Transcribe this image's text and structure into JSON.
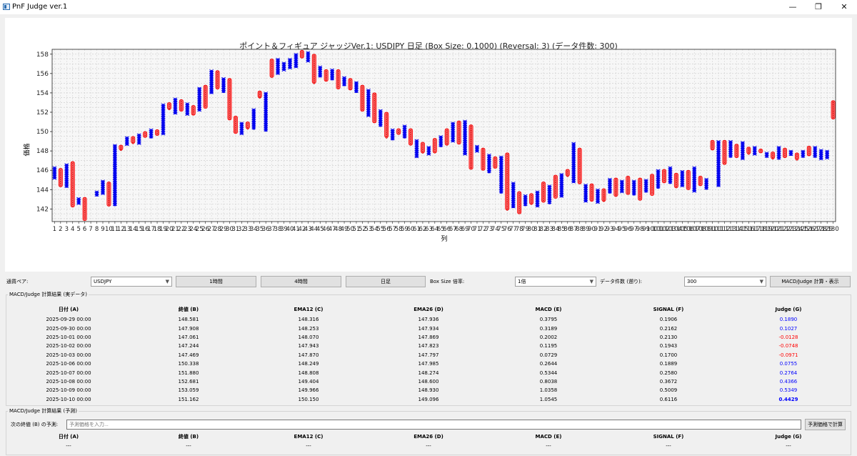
{
  "window": {
    "title": "PnF Judge ver.1",
    "minimize": "—",
    "maximize": "❐",
    "close": "✕"
  },
  "chart": {
    "title": "ポイント＆フィギュア ジャッジVer.1: USDJPY 日足 (Box Size: 0.1000) (Reversal: 3) (データ件数: 300)",
    "ylabel": "価格",
    "xlabel": "列"
  },
  "chart_data": {
    "type": "point-and-figure",
    "title": "ポイント＆フィギュア ジャッジVer.1: USDJPY 日足 (Box Size: 0.1000) (Reversal: 3) (データ件数: 300)",
    "xlabel": "列",
    "ylabel": "価格",
    "ylim": [
      140.7,
      158.5
    ],
    "yticks": [
      142,
      144,
      146,
      148,
      150,
      152,
      154,
      156,
      158
    ],
    "xlim": [
      0.6,
      99.0
    ],
    "xtick_labels": [
      "1",
      "2",
      "3",
      "4",
      "5",
      "6",
      "7",
      "8",
      "9",
      "10",
      "11",
      "12",
      "13",
      "14",
      "15",
      "16",
      "17",
      "18",
      "19",
      "20",
      "21",
      "22",
      "23",
      "24",
      "25",
      "26",
      "27",
      "28",
      "29",
      "30",
      "31",
      "32",
      "33",
      "34",
      "35",
      "36",
      "37",
      "38",
      "39",
      "40",
      "41",
      "42",
      "43",
      "44",
      "45",
      "46",
      "47",
      "48",
      "49",
      "50",
      "51",
      "52",
      "53",
      "54",
      "55",
      "56",
      "57",
      "58",
      "59",
      "60",
      "61",
      "62",
      "63",
      "64",
      "65",
      "66",
      "67",
      "68",
      "69",
      "70",
      "71",
      "72",
      "73",
      "74",
      "75",
      "76",
      "77",
      "78",
      "79",
      "80",
      "81",
      "82",
      "83",
      "84",
      "85",
      "86",
      "87",
      "88",
      "89",
      "90",
      "91",
      "92",
      "93",
      "94",
      "95",
      "96",
      "97",
      "98",
      "99",
      "100",
      "101",
      "102",
      "103",
      "104",
      "105",
      "106",
      "107",
      "108",
      "109",
      "110",
      "111",
      "112",
      "113",
      "114",
      "115",
      "116",
      "117",
      "118",
      "119",
      "120",
      "121",
      "122",
      "123",
      "124",
      "125",
      "126",
      "127",
      "128",
      "129",
      "130"
    ],
    "grid": true,
    "legend": "none",
    "series": [
      {
        "name": "X",
        "marker": "x",
        "color": "#0000ee",
        "columns": [
          {
            "x": 1,
            "low": 145.1,
            "high": 146.3
          },
          {
            "x": 3,
            "low": 144.2,
            "high": 146.6
          },
          {
            "x": 5,
            "low": 142.5,
            "high": 143.1
          },
          {
            "x": 8,
            "low": 143.3,
            "high": 143.8
          },
          {
            "x": 9,
            "low": 143.5,
            "high": 144.9
          },
          {
            "x": 11,
            "low": 142.3,
            "high": 148.6
          },
          {
            "x": 13,
            "low": 148.6,
            "high": 149.4
          },
          {
            "x": 15,
            "low": 148.7,
            "high": 149.7
          },
          {
            "x": 17,
            "low": 149.3,
            "high": 150.2
          },
          {
            "x": 19,
            "low": 149.7,
            "high": 152.8
          },
          {
            "x": 21,
            "low": 151.8,
            "high": 153.4
          },
          {
            "x": 23,
            "low": 151.7,
            "high": 152.9
          },
          {
            "x": 25,
            "low": 152.1,
            "high": 154.5
          },
          {
            "x": 27,
            "low": 153.9,
            "high": 156.3
          },
          {
            "x": 29,
            "low": 154.0,
            "high": 155.5
          },
          {
            "x": 32,
            "low": 149.7,
            "high": 150.9
          },
          {
            "x": 34,
            "low": 150.2,
            "high": 152.3
          },
          {
            "x": 36,
            "low": 150.0,
            "high": 154.0
          },
          {
            "x": 38,
            "low": 155.9,
            "high": 157.5
          },
          {
            "x": 39,
            "low": 156.3,
            "high": 157.1
          },
          {
            "x": 40,
            "low": 156.5,
            "high": 157.5
          },
          {
            "x": 41,
            "low": 156.6,
            "high": 158.0
          },
          {
            "x": 43,
            "low": 157.2,
            "high": 158.2
          },
          {
            "x": 45,
            "low": 155.6,
            "high": 156.7
          },
          {
            "x": 47,
            "low": 155.3,
            "high": 156.4
          },
          {
            "x": 49,
            "low": 154.7,
            "high": 155.6
          },
          {
            "x": 51,
            "low": 154.0,
            "high": 155.1
          },
          {
            "x": 53,
            "low": 151.6,
            "high": 154.3
          },
          {
            "x": 55,
            "low": 150.5,
            "high": 152.2
          },
          {
            "x": 57,
            "low": 149.1,
            "high": 150.2
          },
          {
            "x": 59,
            "low": 149.3,
            "high": 150.6
          },
          {
            "x": 61,
            "low": 147.3,
            "high": 149.1
          },
          {
            "x": 63,
            "low": 147.6,
            "high": 148.4
          },
          {
            "x": 65,
            "low": 148.4,
            "high": 149.5
          },
          {
            "x": 67,
            "low": 148.9,
            "high": 150.9
          },
          {
            "x": 69,
            "low": 147.6,
            "high": 151.1
          },
          {
            "x": 71,
            "low": 147.9,
            "high": 148.5
          },
          {
            "x": 73,
            "low": 145.7,
            "high": 147.6
          },
          {
            "x": 75,
            "low": 143.6,
            "high": 147.4
          },
          {
            "x": 77,
            "low": 142.1,
            "high": 144.7
          },
          {
            "x": 79,
            "low": 142.3,
            "high": 143.4
          },
          {
            "x": 81,
            "low": 142.2,
            "high": 143.8
          },
          {
            "x": 83,
            "low": 142.5,
            "high": 144.4
          },
          {
            "x": 85,
            "low": 143.2,
            "high": 145.6
          },
          {
            "x": 87,
            "low": 144.7,
            "high": 148.8
          },
          {
            "x": 89,
            "low": 142.7,
            "high": 144.5
          },
          {
            "x": 91,
            "low": 142.6,
            "high": 144.0
          },
          {
            "x": 93,
            "low": 143.6,
            "high": 145.1
          },
          {
            "x": 95,
            "low": 143.7,
            "high": 144.9
          },
          {
            "x": 97,
            "low": 143.4,
            "high": 144.9
          },
          {
            "x": 99,
            "low": 143.7,
            "high": 145.0
          },
          {
            "x": 101,
            "low": 144.1,
            "high": 146.0
          },
          {
            "x": 103,
            "low": 144.6,
            "high": 146.3
          },
          {
            "x": 105,
            "low": 144.3,
            "high": 145.9
          },
          {
            "x": 107,
            "low": 143.8,
            "high": 146.3
          },
          {
            "x": 109,
            "low": 144.0,
            "high": 145.1
          },
          {
            "x": 111,
            "low": 144.3,
            "high": 149.0
          },
          {
            "x": 113,
            "low": 147.3,
            "high": 149.0
          },
          {
            "x": 115,
            "low": 147.1,
            "high": 148.9
          },
          {
            "x": 117,
            "low": 147.6,
            "high": 148.4
          },
          {
            "x": 119,
            "low": 147.3,
            "high": 147.8
          },
          {
            "x": 121,
            "low": 147.1,
            "high": 148.4
          },
          {
            "x": 123,
            "low": 147.5,
            "high": 148.0
          },
          {
            "x": 125,
            "low": 147.3,
            "high": 148.0
          },
          {
            "x": 127,
            "low": 147.3,
            "high": 148.4
          },
          {
            "x": 128,
            "low": 147.1,
            "high": 148.1
          },
          {
            "x": 129,
            "low": 147.2,
            "high": 148.0
          }
        ]
      },
      {
        "name": "O",
        "marker": "o",
        "color": "#ff0000",
        "columns": [
          {
            "x": 2,
            "low": 144.3,
            "high": 146.2
          },
          {
            "x": 4,
            "low": 142.2,
            "high": 146.9
          },
          {
            "x": 6,
            "low": 140.8,
            "high": 143.2
          },
          {
            "x": 10,
            "low": 142.3,
            "high": 144.8
          },
          {
            "x": 12,
            "low": 148.1,
            "high": 148.6
          },
          {
            "x": 14,
            "low": 148.8,
            "high": 149.5
          },
          {
            "x": 16,
            "low": 149.4,
            "high": 150.0
          },
          {
            "x": 18,
            "low": 149.6,
            "high": 150.2
          },
          {
            "x": 20,
            "low": 152.3,
            "high": 153.0
          },
          {
            "x": 22,
            "low": 152.1,
            "high": 153.3
          },
          {
            "x": 24,
            "low": 151.7,
            "high": 152.7
          },
          {
            "x": 26,
            "low": 152.4,
            "high": 154.8
          },
          {
            "x": 28,
            "low": 154.4,
            "high": 156.3
          },
          {
            "x": 30,
            "low": 151.2,
            "high": 155.5
          },
          {
            "x": 31,
            "low": 149.8,
            "high": 151.6
          },
          {
            "x": 33,
            "low": 150.3,
            "high": 151.0
          },
          {
            "x": 35,
            "low": 153.5,
            "high": 154.2
          },
          {
            "x": 37,
            "low": 155.6,
            "high": 157.5
          },
          {
            "x": 42,
            "low": 157.6,
            "high": 158.4
          },
          {
            "x": 44,
            "low": 155.0,
            "high": 158.0
          },
          {
            "x": 46,
            "low": 155.2,
            "high": 156.4
          },
          {
            "x": 48,
            "low": 154.4,
            "high": 156.4
          },
          {
            "x": 50,
            "low": 154.3,
            "high": 155.5
          },
          {
            "x": 52,
            "low": 152.1,
            "high": 154.8
          },
          {
            "x": 54,
            "low": 150.9,
            "high": 154.0
          },
          {
            "x": 56,
            "low": 149.4,
            "high": 152.0
          },
          {
            "x": 58,
            "low": 149.7,
            "high": 150.3
          },
          {
            "x": 60,
            "low": 148.6,
            "high": 150.3
          },
          {
            "x": 62,
            "low": 147.8,
            "high": 148.9
          },
          {
            "x": 64,
            "low": 147.8,
            "high": 149.3
          },
          {
            "x": 66,
            "low": 148.6,
            "high": 150.3
          },
          {
            "x": 68,
            "low": 148.7,
            "high": 151.1
          },
          {
            "x": 70,
            "low": 146.1,
            "high": 150.7
          },
          {
            "x": 72,
            "low": 146.0,
            "high": 148.3
          },
          {
            "x": 74,
            "low": 146.2,
            "high": 147.4
          },
          {
            "x": 76,
            "low": 141.9,
            "high": 147.8
          },
          {
            "x": 78,
            "low": 141.5,
            "high": 143.8
          },
          {
            "x": 80,
            "low": 142.5,
            "high": 143.6
          },
          {
            "x": 82,
            "low": 142.7,
            "high": 144.8
          },
          {
            "x": 84,
            "low": 143.1,
            "high": 145.5
          },
          {
            "x": 86,
            "low": 145.4,
            "high": 146.1
          },
          {
            "x": 88,
            "low": 144.6,
            "high": 148.3
          },
          {
            "x": 90,
            "low": 142.8,
            "high": 144.6
          },
          {
            "x": 92,
            "low": 142.8,
            "high": 144.1
          },
          {
            "x": 94,
            "low": 143.3,
            "high": 145.2
          },
          {
            "x": 96,
            "low": 143.5,
            "high": 145.4
          },
          {
            "x": 98,
            "low": 142.9,
            "high": 145.2
          },
          {
            "x": 100,
            "low": 143.4,
            "high": 145.6
          },
          {
            "x": 102,
            "low": 144.7,
            "high": 146.1
          },
          {
            "x": 104,
            "low": 144.2,
            "high": 145.7
          },
          {
            "x": 106,
            "low": 144.0,
            "high": 146.0
          },
          {
            "x": 108,
            "low": 144.4,
            "high": 145.4
          },
          {
            "x": 110,
            "low": 148.1,
            "high": 149.1
          },
          {
            "x": 112,
            "low": 146.6,
            "high": 149.1
          },
          {
            "x": 114,
            "low": 147.3,
            "high": 148.7
          },
          {
            "x": 116,
            "low": 147.7,
            "high": 148.4
          },
          {
            "x": 118,
            "low": 147.8,
            "high": 148.2
          },
          {
            "x": 120,
            "low": 147.2,
            "high": 147.9
          },
          {
            "x": 122,
            "low": 147.3,
            "high": 148.3
          },
          {
            "x": 124,
            "low": 147.1,
            "high": 147.8
          },
          {
            "x": 126,
            "low": 147.5,
            "high": 148.5
          },
          {
            "x": 130,
            "low": 151.3,
            "high": 153.2
          }
        ]
      }
    ]
  },
  "controls": {
    "pair_label": "通貨ペア:",
    "pair_value": "USDJPY",
    "btn_1h": "1時間",
    "btn_4h": "4時間",
    "btn_daily": "日足",
    "boxsize_label": "Box Size 倍率:",
    "boxsize_value": "1倍",
    "count_label": "データ件数 (遡り):",
    "count_value": "300",
    "calc_button": "MACD/Judge 計算・表示"
  },
  "results": {
    "title": "MACD/Judge 計算結果 (実データ)",
    "headers": [
      "日付 (A)",
      "終値 (B)",
      "EMA12 (C)",
      "EMA26 (D)",
      "MACD (E)",
      "SIGNAL (F)",
      "Judge (G)"
    ],
    "rows": [
      [
        "2025-09-29 00:00",
        "148.581",
        "148.316",
        "147.936",
        "0.3795",
        "0.1906",
        "0.1890"
      ],
      [
        "2025-09-30 00:00",
        "147.908",
        "148.253",
        "147.934",
        "0.3189",
        "0.2162",
        "0.1027"
      ],
      [
        "2025-10-01 00:00",
        "147.061",
        "148.070",
        "147.869",
        "0.2002",
        "0.2130",
        "-0.0128"
      ],
      [
        "2025-10-02 00:00",
        "147.244",
        "147.943",
        "147.823",
        "0.1195",
        "0.1943",
        "-0.0748"
      ],
      [
        "2025-10-03 00:00",
        "147.469",
        "147.870",
        "147.797",
        "0.0729",
        "0.1700",
        "-0.0971"
      ],
      [
        "2025-10-06 00:00",
        "150.338",
        "148.249",
        "147.985",
        "0.2644",
        "0.1889",
        "0.0755"
      ],
      [
        "2025-10-07 00:00",
        "151.880",
        "148.808",
        "148.274",
        "0.5344",
        "0.2580",
        "0.2764"
      ],
      [
        "2025-10-08 00:00",
        "152.681",
        "149.404",
        "148.600",
        "0.8038",
        "0.3672",
        "0.4366"
      ],
      [
        "2025-10-09 00:00",
        "153.059",
        "149.966",
        "148.930",
        "1.0358",
        "0.5009",
        "0.5349"
      ],
      [
        "2025-10-10 00:00",
        "151.162",
        "150.150",
        "149.096",
        "1.0545",
        "0.6116",
        "0.4429"
      ]
    ],
    "judge_colors": {
      "positive": "#0000ff",
      "negative": "#ff0000"
    }
  },
  "prediction": {
    "title": "MACD/Judge 計算結果 (予測)",
    "input_label": "次の終値 (B) の予測:",
    "input_placeholder": "予測価格を入力...",
    "calc_button": "予測価格で計算",
    "headers": [
      "日付 (A)",
      "終値 (B)",
      "EMA12 (C)",
      "EMA26 (D)",
      "MACD (E)",
      "SIGNAL (F)",
      "Judge (G)"
    ],
    "row": [
      "---",
      "---",
      "---",
      "---",
      "---",
      "---",
      "---"
    ]
  }
}
